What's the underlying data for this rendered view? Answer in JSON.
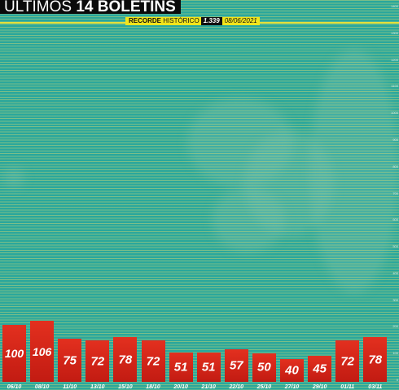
{
  "title": {
    "prefix": "ÚLTIMOS",
    "bold": "14 BOLETINS"
  },
  "record": {
    "label_bold": "RECORDE",
    "label_rest": " HISTÓRICO",
    "value": "1.339",
    "date": "08/06/2021"
  },
  "colors": {
    "background": "#2aa79c",
    "bar": "#d4261a",
    "record_line": "#e6e03a",
    "badge": "#f2e51c"
  },
  "chart_data": {
    "type": "bar",
    "title": "ÚLTIMOS 14 BOLETINS",
    "xlabel": "",
    "ylabel": "",
    "ylim": [
      0,
      1400
    ],
    "y_ticks": [
      0,
      100,
      200,
      300,
      400,
      500,
      600,
      700,
      800,
      900,
      1000,
      1100,
      1200,
      1300,
      1400
    ],
    "grid": true,
    "record_line": 1339,
    "categories": [
      "06/10",
      "08/10",
      "11/10",
      "13/10",
      "15/10",
      "18/10",
      "20/10",
      "21/10",
      "22/10",
      "25/10",
      "27/10",
      "29/10",
      "01/11",
      "03/11"
    ],
    "values": [
      100,
      106,
      75,
      72,
      78,
      72,
      51,
      51,
      57,
      50,
      40,
      45,
      72,
      78
    ]
  }
}
